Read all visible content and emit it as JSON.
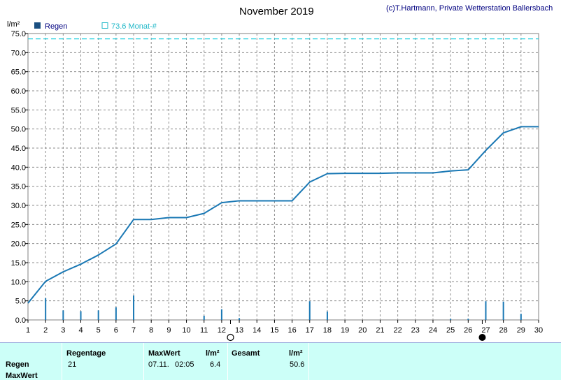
{
  "header": {
    "title": "November 2019",
    "credit": "(c)T.Hartmann, Private Wetterstation Ballersbach",
    "unit": "l/m²"
  },
  "legend": {
    "rain_label": "Regen",
    "monthly_label": "73.6 Monat-#"
  },
  "colors": {
    "line": "#1a78b4",
    "bar": "#1a78b4",
    "dashed_ref": "#20d0e0",
    "grid": "#8c8c8c",
    "summary_bg": "#ccfff8"
  },
  "chart_data": {
    "type": "bar+line",
    "title": "November 2019",
    "ylabel": "l/m²",
    "xlim": [
      1,
      30
    ],
    "ylim": [
      0,
      75
    ],
    "y_ticks": [
      "0.0",
      "5.0",
      "10.0",
      "15.0",
      "20.0",
      "25.0",
      "30.0",
      "35.0",
      "40.0",
      "45.0",
      "50.0",
      "55.0",
      "60.0",
      "65.0",
      "70.0",
      "75.0"
    ],
    "x_ticks": [
      "1",
      "2",
      "3",
      "4",
      "5",
      "6",
      "7",
      "8",
      "9",
      "10",
      "11",
      "12",
      "13",
      "14",
      "15",
      "16",
      "17",
      "18",
      "19",
      "20",
      "21",
      "22",
      "23",
      "24",
      "25",
      "26",
      "27",
      "28",
      "29",
      "30"
    ],
    "reference_line": {
      "name": "73.6 Monat-#",
      "value": 73.6
    },
    "daily_rain": {
      "name": "Regen",
      "x": [
        2,
        3,
        4,
        5,
        6,
        7,
        11,
        12,
        13,
        17,
        18,
        25,
        26,
        27,
        28,
        29
      ],
      "values": [
        5.7,
        2.5,
        2.3,
        2.5,
        3.3,
        6.4,
        1.1,
        2.8,
        0.5,
        4.9,
        2.2,
        0.3,
        0.3,
        4.9,
        4.8,
        1.6
      ]
    },
    "cumulative": {
      "x": [
        1,
        2,
        3,
        4,
        5,
        6,
        7,
        8,
        9,
        10,
        11,
        12,
        13,
        14,
        15,
        16,
        17,
        18,
        19,
        20,
        21,
        22,
        23,
        24,
        25,
        26,
        27,
        28,
        29,
        30
      ],
      "values": [
        4.4,
        10.1,
        12.6,
        14.6,
        17.0,
        19.9,
        26.3,
        26.3,
        26.8,
        26.8,
        27.9,
        30.7,
        31.2,
        31.2,
        31.2,
        31.2,
        36.1,
        38.3,
        38.4,
        38.4,
        38.4,
        38.5,
        38.5,
        38.5,
        39.0,
        39.3,
        44.4,
        49.0,
        50.6,
        50.6
      ]
    },
    "moon_phases": [
      {
        "phase": "full",
        "x": 12.5
      },
      {
        "phase": "new",
        "x": 26.8
      }
    ]
  },
  "summary": {
    "row_labels": [
      "Regen",
      "MaxWert"
    ],
    "regentage_header": "Regentage",
    "regentage_value": "21",
    "maxwert_header": "MaxWert",
    "maxwert_unit": "l/m²",
    "maxwert_date": "07.11.",
    "maxwert_time": "02:05",
    "maxwert_value": "6.4",
    "gesamt_header": "Gesamt",
    "gesamt_unit": "l/m²",
    "gesamt_value": "50.6"
  }
}
